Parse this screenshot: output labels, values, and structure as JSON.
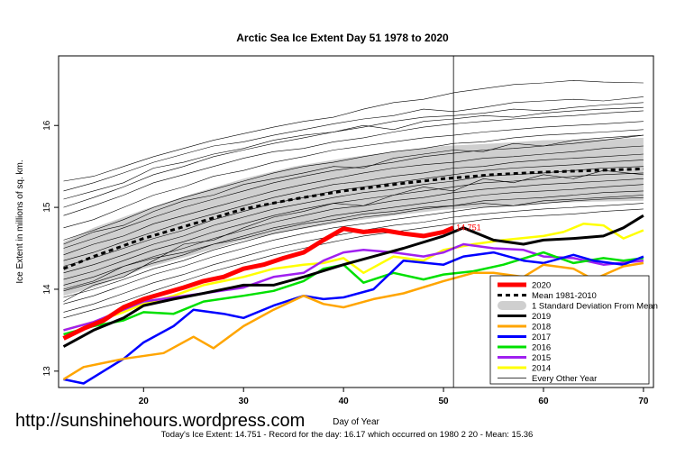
{
  "chart_data": {
    "type": "line",
    "title": "Arctic Sea Ice Extent Day 51 1978 to 2020",
    "xlabel": "Day of Year",
    "ylabel": "Ice Extent in millions of sq. km.",
    "xlim": [
      11.5,
      71
    ],
    "ylim": [
      12.8,
      16.85
    ],
    "x_ticks": [
      20,
      30,
      40,
      50,
      60,
      70
    ],
    "y_ticks": [
      13,
      14,
      15,
      16
    ],
    "grid": false,
    "legend_position": "bottom-right",
    "current_day": 51,
    "current_value_label": "14.751",
    "footer": "Today's Ice Extent: 14.751  - Record for the day: 16.17 which occurred on 1980 2 20  - Mean: 15.36",
    "mean_1981_2010": {
      "name": "Mean 1981-2010",
      "color": "#000000",
      "x": [
        12,
        15,
        20,
        25,
        30,
        35,
        40,
        45,
        50,
        55,
        60,
        65,
        70
      ],
      "y": [
        14.25,
        14.4,
        14.62,
        14.8,
        14.98,
        15.1,
        15.2,
        15.28,
        15.35,
        15.4,
        15.43,
        15.45,
        15.47
      ]
    },
    "std_band": {
      "name": "1 Standard Deviation From Mean",
      "color": "#cfcfcf",
      "x": [
        12,
        15,
        20,
        25,
        30,
        35,
        40,
        45,
        50,
        55,
        60,
        65,
        70
      ],
      "upper": [
        14.58,
        14.75,
        14.97,
        15.17,
        15.35,
        15.5,
        15.6,
        15.68,
        15.75,
        15.78,
        15.82,
        15.83,
        15.85
      ],
      "lower": [
        13.92,
        14.02,
        14.25,
        14.42,
        14.6,
        14.72,
        14.82,
        14.9,
        14.97,
        15.01,
        15.05,
        15.07,
        15.08
      ]
    },
    "series": [
      {
        "name": "2020",
        "color": "#ff0000",
        "x": [
          12,
          14,
          16,
          18,
          20,
          22,
          24,
          26,
          28,
          30,
          32,
          34,
          36,
          38,
          40,
          42,
          44,
          46,
          48,
          50,
          51
        ],
        "y": [
          13.4,
          13.52,
          13.62,
          13.78,
          13.88,
          13.95,
          14.02,
          14.1,
          14.15,
          14.25,
          14.3,
          14.38,
          14.45,
          14.6,
          14.74,
          14.7,
          14.72,
          14.68,
          14.65,
          14.7,
          14.751
        ]
      },
      {
        "name": "2019",
        "color": "#000000",
        "x": [
          12,
          15,
          18,
          20,
          23,
          26,
          30,
          33,
          36,
          40,
          43,
          46,
          50,
          52,
          55,
          58,
          60,
          63,
          66,
          68,
          70
        ],
        "y": [
          13.3,
          13.5,
          13.65,
          13.8,
          13.88,
          13.95,
          14.05,
          14.05,
          14.15,
          14.3,
          14.4,
          14.5,
          14.65,
          14.75,
          14.6,
          14.55,
          14.6,
          14.62,
          14.65,
          14.75,
          14.9
        ]
      },
      {
        "name": "2018",
        "color": "#ffa500",
        "x": [
          12,
          14,
          18,
          22,
          25,
          27,
          30,
          33,
          36,
          38,
          40,
          43,
          46,
          50,
          53,
          55,
          58,
          60,
          63,
          65,
          68,
          70
        ],
        "y": [
          12.9,
          13.05,
          13.15,
          13.22,
          13.42,
          13.28,
          13.55,
          13.75,
          13.92,
          13.82,
          13.78,
          13.88,
          13.95,
          14.1,
          14.2,
          14.2,
          14.15,
          14.3,
          14.25,
          14.12,
          14.28,
          14.32
        ]
      },
      {
        "name": "2017",
        "color": "#0000ff",
        "x": [
          12,
          14,
          16,
          18,
          20,
          23,
          25,
          28,
          30,
          33,
          36,
          38,
          40,
          43,
          46,
          50,
          52,
          55,
          58,
          60,
          63,
          65,
          68,
          70
        ],
        "y": [
          12.9,
          12.85,
          13.0,
          13.15,
          13.35,
          13.55,
          13.75,
          13.7,
          13.65,
          13.8,
          13.92,
          13.88,
          13.9,
          14.0,
          14.35,
          14.3,
          14.4,
          14.45,
          14.35,
          14.32,
          14.42,
          14.35,
          14.3,
          14.4
        ]
      },
      {
        "name": "2016",
        "color": "#00e000",
        "x": [
          12,
          15,
          18,
          20,
          23,
          26,
          30,
          33,
          36,
          38,
          40,
          42,
          45,
          48,
          50,
          53,
          56,
          60,
          63,
          66,
          68,
          70
        ],
        "y": [
          13.45,
          13.55,
          13.62,
          13.72,
          13.7,
          13.85,
          13.92,
          13.98,
          14.1,
          14.25,
          14.3,
          14.08,
          14.2,
          14.12,
          14.18,
          14.22,
          14.3,
          14.45,
          14.32,
          14.38,
          14.35,
          14.38
        ]
      },
      {
        "name": "2015",
        "color": "#a020f0",
        "x": [
          12,
          15,
          18,
          20,
          23,
          26,
          30,
          33,
          36,
          38,
          40,
          42,
          45,
          48,
          50,
          52,
          55,
          58,
          60,
          63,
          66,
          70
        ],
        "y": [
          13.5,
          13.6,
          13.75,
          13.85,
          13.9,
          13.95,
          14.02,
          14.15,
          14.2,
          14.35,
          14.45,
          14.48,
          14.45,
          14.4,
          14.45,
          14.55,
          14.5,
          14.48,
          14.4,
          14.38,
          14.3,
          14.35
        ]
      },
      {
        "name": "2014",
        "color": "#ffff00",
        "x": [
          12,
          15,
          18,
          20,
          23,
          26,
          30,
          33,
          36,
          38,
          40,
          42,
          45,
          48,
          50,
          53,
          56,
          60,
          62,
          64,
          66,
          68,
          70
        ],
        "y": [
          13.5,
          13.6,
          13.72,
          13.82,
          13.92,
          14.05,
          14.15,
          14.25,
          14.3,
          14.32,
          14.38,
          14.2,
          14.4,
          14.35,
          14.48,
          14.55,
          14.6,
          14.65,
          14.7,
          14.8,
          14.78,
          14.62,
          14.72
        ]
      }
    ],
    "other_years": {
      "name": "Every Other Year",
      "color": "#000000",
      "x": [
        12,
        15,
        18,
        21,
        24,
        27,
        30,
        33,
        36,
        39,
        42,
        45,
        48,
        51,
        54,
        57,
        60,
        63,
        66,
        70
      ],
      "lines": [
        [
          15.32,
          15.38,
          15.5,
          15.62,
          15.72,
          15.82,
          15.9,
          15.98,
          16.05,
          16.1,
          16.2,
          16.28,
          16.32,
          16.4,
          16.45,
          16.5,
          16.52,
          16.55,
          16.53,
          16.52
        ],
        [
          15.2,
          15.3,
          15.42,
          15.55,
          15.65,
          15.75,
          15.8,
          15.88,
          15.95,
          16.02,
          16.08,
          16.12,
          16.2,
          16.17,
          16.22,
          16.28,
          16.3,
          16.32,
          16.3,
          16.35
        ],
        [
          15.0,
          15.12,
          15.25,
          15.4,
          15.5,
          15.62,
          15.7,
          15.78,
          15.85,
          15.92,
          15.98,
          16.05,
          16.1,
          16.12,
          16.15,
          16.2,
          16.18,
          16.22,
          16.25,
          16.28
        ],
        [
          14.9,
          15.02,
          15.15,
          15.3,
          15.4,
          15.5,
          15.6,
          15.68,
          15.72,
          15.8,
          15.85,
          15.92,
          15.98,
          16.02,
          16.05,
          16.08,
          16.1,
          16.12,
          16.15,
          16.18
        ],
        [
          14.75,
          14.85,
          15.0,
          15.15,
          15.25,
          15.38,
          15.45,
          15.55,
          15.62,
          15.7,
          15.75,
          15.8,
          15.85,
          15.88,
          15.92,
          15.95,
          15.98,
          16.0,
          16.02,
          16.05
        ],
        [
          14.6,
          14.72,
          14.85,
          15.0,
          15.12,
          15.22,
          15.32,
          15.42,
          15.5,
          15.55,
          15.62,
          15.68,
          15.72,
          15.78,
          15.8,
          15.85,
          15.88,
          15.9,
          15.92,
          15.95
        ],
        [
          14.5,
          14.62,
          14.75,
          14.88,
          15.0,
          15.1,
          15.2,
          15.3,
          15.38,
          15.45,
          15.5,
          15.55,
          15.62,
          15.66,
          15.7,
          15.72,
          15.75,
          15.78,
          15.82,
          15.88
        ],
        [
          14.42,
          14.55,
          14.65,
          14.8,
          14.9,
          15.0,
          15.1,
          15.2,
          15.28,
          15.35,
          15.42,
          15.48,
          15.52,
          15.55,
          15.6,
          15.62,
          15.65,
          15.68,
          15.72,
          15.75
        ],
        [
          14.35,
          14.45,
          14.58,
          14.7,
          14.82,
          14.92,
          15.02,
          15.12,
          15.2,
          15.28,
          15.32,
          15.38,
          15.42,
          15.48,
          15.5,
          15.55,
          15.58,
          15.6,
          15.62,
          15.65
        ],
        [
          14.28,
          14.38,
          14.5,
          14.62,
          14.72,
          14.85,
          14.95,
          15.05,
          15.12,
          15.2,
          15.25,
          15.3,
          15.35,
          15.4,
          15.45,
          15.48,
          15.5,
          15.52,
          15.55,
          15.58
        ],
        [
          14.2,
          14.3,
          14.42,
          14.55,
          14.65,
          14.78,
          14.88,
          14.98,
          15.05,
          15.12,
          15.18,
          15.22,
          15.28,
          15.32,
          15.38,
          15.4,
          15.42,
          15.45,
          15.48,
          15.5
        ],
        [
          14.12,
          14.22,
          14.35,
          14.48,
          14.58,
          14.7,
          14.8,
          14.9,
          14.98,
          15.05,
          15.1,
          15.15,
          15.2,
          15.25,
          15.3,
          15.32,
          15.35,
          15.38,
          15.4,
          15.42
        ],
        [
          14.05,
          14.15,
          14.28,
          14.4,
          14.5,
          14.62,
          14.72,
          14.82,
          14.9,
          14.98,
          15.02,
          15.08,
          15.12,
          15.18,
          15.22,
          15.25,
          15.28,
          15.3,
          15.32,
          15.35
        ],
        [
          13.98,
          14.08,
          14.2,
          14.32,
          14.42,
          14.55,
          14.65,
          14.75,
          14.82,
          14.9,
          14.95,
          15.0,
          15.05,
          15.1,
          15.15,
          15.18,
          15.2,
          15.22,
          15.25,
          15.28
        ],
        [
          13.9,
          14.0,
          14.12,
          14.25,
          14.35,
          14.48,
          14.58,
          14.68,
          14.75,
          14.82,
          14.88,
          14.92,
          14.98,
          15.02,
          15.08,
          15.1,
          15.12,
          15.15,
          15.18,
          15.2
        ],
        [
          13.82,
          13.92,
          14.05,
          14.18,
          14.28,
          14.4,
          14.5,
          14.6,
          14.68,
          14.75,
          14.8,
          14.85,
          14.9,
          14.95,
          15.0,
          15.02,
          15.05,
          15.08,
          15.1,
          15.12
        ],
        [
          13.72,
          13.82,
          13.95,
          14.08,
          14.18,
          14.3,
          14.4,
          14.5,
          14.58,
          14.65,
          14.72,
          14.78,
          14.82,
          14.88,
          14.92,
          14.95,
          14.98,
          15.0,
          15.02,
          15.05
        ],
        [
          13.65,
          13.75,
          13.85,
          13.98,
          14.1,
          14.22,
          14.32,
          14.42,
          14.5,
          14.58,
          14.65,
          14.7,
          14.75,
          14.8,
          14.85,
          14.88,
          14.9,
          14.92,
          14.95,
          14.98
        ],
        [
          13.85,
          14.05,
          14.15,
          14.35,
          14.55,
          14.6,
          14.75,
          14.88,
          14.95,
          15.05,
          15.02,
          15.15,
          15.25,
          15.2,
          15.35,
          15.3,
          15.4,
          15.35,
          15.45,
          15.4
        ],
        [
          14.55,
          14.7,
          14.78,
          14.95,
          15.08,
          15.15,
          15.28,
          15.35,
          15.42,
          15.5,
          15.48,
          15.6,
          15.65,
          15.7,
          15.68,
          15.78,
          15.75,
          15.82,
          15.85,
          15.88
        ],
        [
          15.1,
          15.2,
          15.3,
          15.48,
          15.55,
          15.65,
          15.72,
          15.82,
          15.88,
          15.92,
          16.0,
          15.95,
          16.05,
          16.08,
          16.12,
          16.1,
          16.15,
          16.18,
          16.2,
          16.22
        ],
        [
          14.0,
          14.1,
          14.28,
          14.38,
          14.45,
          14.55,
          14.62,
          14.72,
          14.8,
          14.85,
          14.92,
          14.95,
          15.0,
          15.02,
          15.05,
          15.02,
          15.08,
          15.1,
          15.12,
          15.15
        ]
      ]
    },
    "legend": [
      "2020",
      "Mean 1981-2010",
      "1 Standard Deviation From Mean",
      "2019",
      "2018",
      "2017",
      "2016",
      "2015",
      "2014",
      "Every Other Year"
    ]
  },
  "watermark": "http://sunshinehours.wordpress.com"
}
